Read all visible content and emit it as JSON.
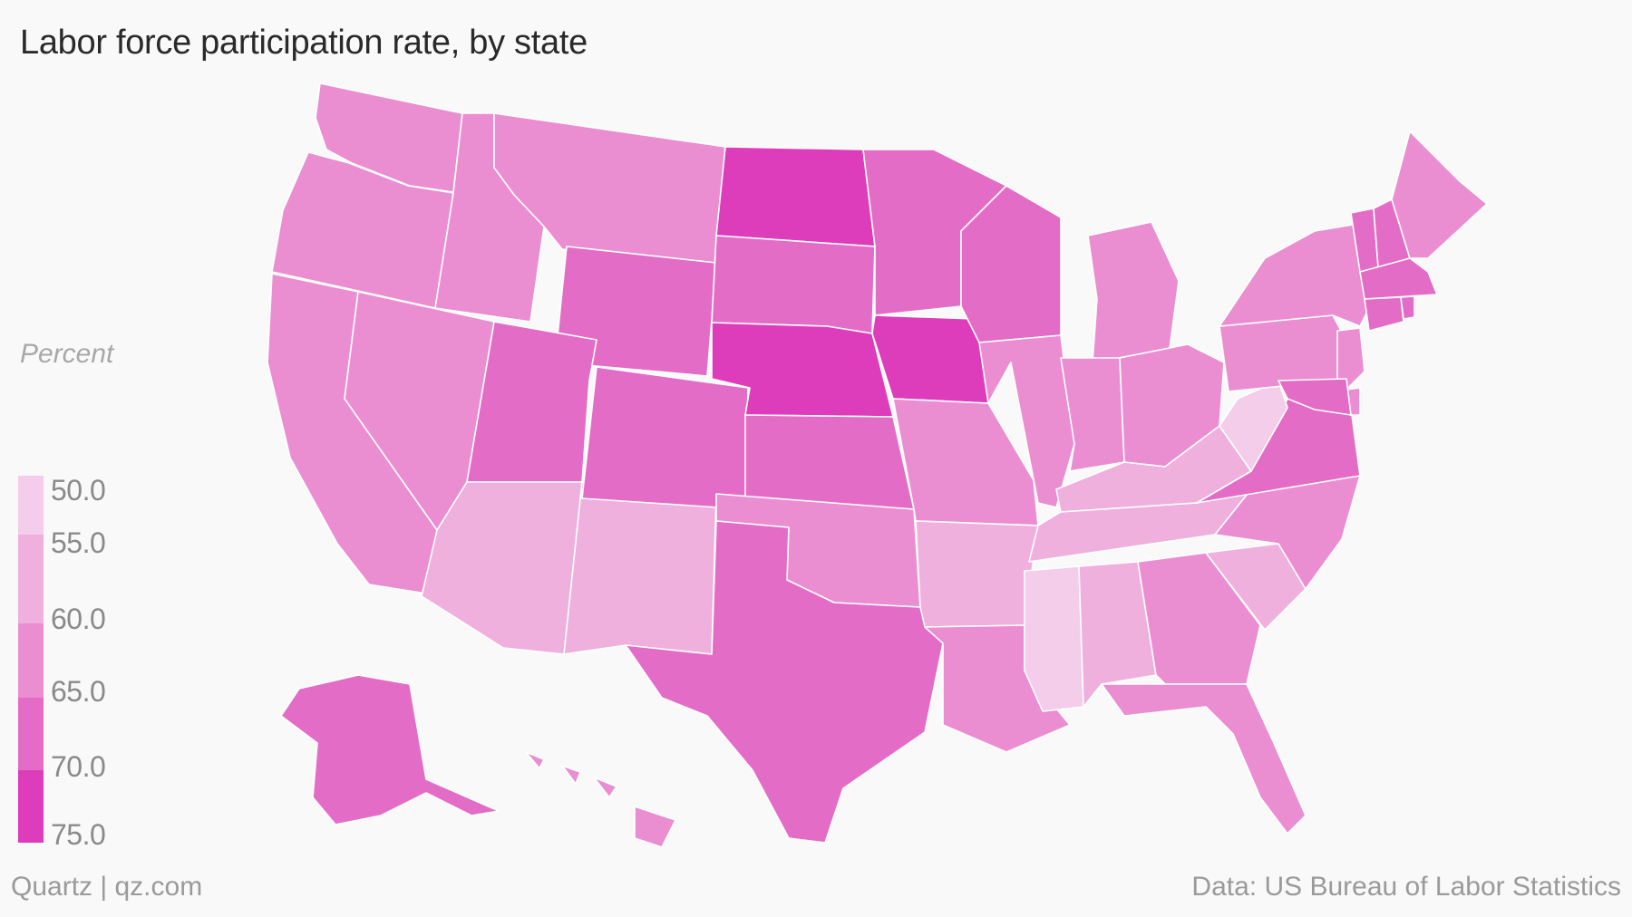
{
  "header": {
    "title": "Labor force participation rate, by state"
  },
  "legend": {
    "title": "Percent",
    "bins": [
      {
        "label": "50.0",
        "color": "#f3cdea"
      },
      {
        "label": "55.0",
        "color": "#efb0de"
      },
      {
        "label": "60.0",
        "color": "#ea8ed1"
      },
      {
        "label": "65.0",
        "color": "#e36dc6"
      },
      {
        "label": "70.0",
        "color": "#dd3dbb"
      },
      {
        "label": "75.0",
        "color": "#dd3dbb"
      }
    ]
  },
  "footer": {
    "source_left": "Quartz | qz.com",
    "source_right": "Data: US Bureau of Labor Statistics"
  },
  "chart_data": {
    "type": "choropleth-map",
    "title": "Labor force participation rate, by state",
    "legend_label": "Percent",
    "scale_breaks": [
      50.0,
      55.0,
      60.0,
      65.0,
      70.0,
      75.0
    ],
    "states": [
      {
        "name": "WA",
        "value": 63.0
      },
      {
        "name": "OR",
        "value": 62.5
      },
      {
        "name": "CA",
        "value": 62.5
      },
      {
        "name": "NV",
        "value": 62.5
      },
      {
        "name": "ID",
        "value": 63.0
      },
      {
        "name": "MT",
        "value": 62.5
      },
      {
        "name": "WY",
        "value": 66.5
      },
      {
        "name": "UT",
        "value": 67.0
      },
      {
        "name": "AZ",
        "value": 58.5
      },
      {
        "name": "NM",
        "value": 58.0
      },
      {
        "name": "CO",
        "value": 67.5
      },
      {
        "name": "ND",
        "value": 72.0
      },
      {
        "name": "SD",
        "value": 68.5
      },
      {
        "name": "NE",
        "value": 71.0
      },
      {
        "name": "KS",
        "value": 66.0
      },
      {
        "name": "OK",
        "value": 61.0
      },
      {
        "name": "TX",
        "value": 65.5
      },
      {
        "name": "MN",
        "value": 69.5
      },
      {
        "name": "IA",
        "value": 70.5
      },
      {
        "name": "MO",
        "value": 63.0
      },
      {
        "name": "AR",
        "value": 58.0
      },
      {
        "name": "LA",
        "value": 60.5
      },
      {
        "name": "WI",
        "value": 67.5
      },
      {
        "name": "IL",
        "value": 64.5
      },
      {
        "name": "MI",
        "value": 61.5
      },
      {
        "name": "IN",
        "value": 64.0
      },
      {
        "name": "OH",
        "value": 63.0
      },
      {
        "name": "KY",
        "value": 59.0
      },
      {
        "name": "TN",
        "value": 59.5
      },
      {
        "name": "MS",
        "value": 54.5
      },
      {
        "name": "AL",
        "value": 57.5
      },
      {
        "name": "GA",
        "value": 62.0
      },
      {
        "name": "FL",
        "value": 61.0
      },
      {
        "name": "SC",
        "value": 58.5
      },
      {
        "name": "NC",
        "value": 61.5
      },
      {
        "name": "VA",
        "value": 66.0
      },
      {
        "name": "WV",
        "value": 54.0
      },
      {
        "name": "PA",
        "value": 62.5
      },
      {
        "name": "NY",
        "value": 62.0
      },
      {
        "name": "VT",
        "value": 67.0
      },
      {
        "name": "NH",
        "value": 68.0
      },
      {
        "name": "ME",
        "value": 63.0
      },
      {
        "name": "MA",
        "value": 66.5
      },
      {
        "name": "CT",
        "value": 66.5
      },
      {
        "name": "RI",
        "value": 65.0
      },
      {
        "name": "NJ",
        "value": 64.5
      },
      {
        "name": "DE",
        "value": 62.5
      },
      {
        "name": "MD",
        "value": 67.5
      },
      {
        "name": "AK",
        "value": 67.0
      },
      {
        "name": "HI",
        "value": 62.5
      }
    ]
  }
}
